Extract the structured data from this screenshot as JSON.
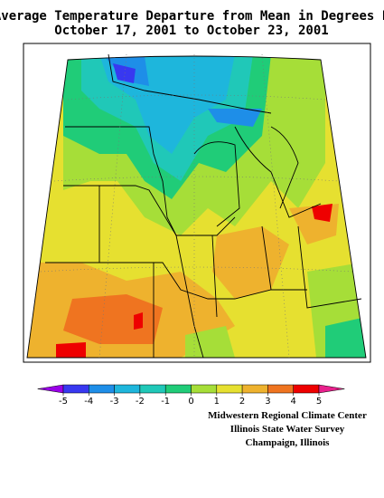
{
  "title": "Average Temperature Departure from Mean in Degrees F",
  "subtitle": "October 17, 2001  to  October 23, 2001",
  "legend": {
    "ticks": [
      -5,
      -4,
      -3,
      -2,
      -1,
      0,
      1,
      2,
      3,
      4,
      5
    ],
    "colors": [
      "#9a00e8",
      "#3838f0",
      "#1e8ee8",
      "#1eb6dc",
      "#20c8b8",
      "#20cc78",
      "#a6de38",
      "#e6e030",
      "#eeb22e",
      "#ef7420",
      "#ee0000",
      "#e8208c"
    ]
  },
  "credits": [
    "Midwestern Regional Climate Center",
    "Illinois State Water Survey",
    "Champaign, Illinois"
  ]
}
